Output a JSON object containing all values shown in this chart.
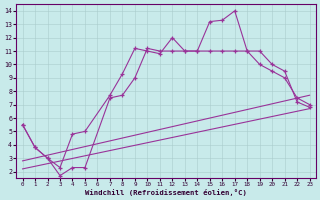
{
  "bg_color": "#c8eaea",
  "line_color": "#993399",
  "grid_color": "#aacccc",
  "border_color": "#660066",
  "xlabel": "Windchill (Refroidissement éolien,°C)",
  "xlabel_color": "#330033",
  "xlim": [
    -0.5,
    23.5
  ],
  "ylim": [
    1.5,
    14.5
  ],
  "xticks": [
    0,
    1,
    2,
    3,
    4,
    5,
    6,
    7,
    8,
    9,
    10,
    11,
    12,
    13,
    14,
    15,
    16,
    17,
    18,
    19,
    20,
    21,
    22,
    23
  ],
  "yticks": [
    2,
    3,
    4,
    5,
    6,
    7,
    8,
    9,
    10,
    11,
    12,
    13,
    14
  ],
  "line1_x": [
    0,
    1,
    2,
    3,
    4,
    5,
    7,
    8,
    9,
    10,
    11,
    12,
    13,
    14,
    15,
    16,
    17,
    18,
    19,
    20,
    21,
    22,
    23
  ],
  "line1_y": [
    5.5,
    3.8,
    3.0,
    2.3,
    4.8,
    5.0,
    7.7,
    9.3,
    11.2,
    11.0,
    10.8,
    12.0,
    11.0,
    11.0,
    13.2,
    13.3,
    14.0,
    11.0,
    10.0,
    9.5,
    9.0,
    7.5,
    7.0
  ],
  "line2_x": [
    0,
    1,
    2,
    3,
    4,
    5,
    7,
    8,
    9,
    10,
    11,
    12,
    13,
    14,
    15,
    16,
    17,
    18,
    19,
    20,
    21,
    22,
    23
  ],
  "line2_y": [
    5.5,
    3.8,
    3.0,
    1.7,
    2.3,
    2.3,
    7.5,
    7.7,
    9.0,
    11.2,
    11.0,
    11.0,
    11.0,
    11.0,
    11.0,
    11.0,
    11.0,
    11.0,
    11.0,
    10.0,
    9.5,
    7.2,
    6.8
  ],
  "line3_x": [
    0,
    23
  ],
  "line3_y": [
    2.8,
    7.7
  ],
  "line4_x": [
    0,
    23
  ],
  "line4_y": [
    2.2,
    6.7
  ]
}
